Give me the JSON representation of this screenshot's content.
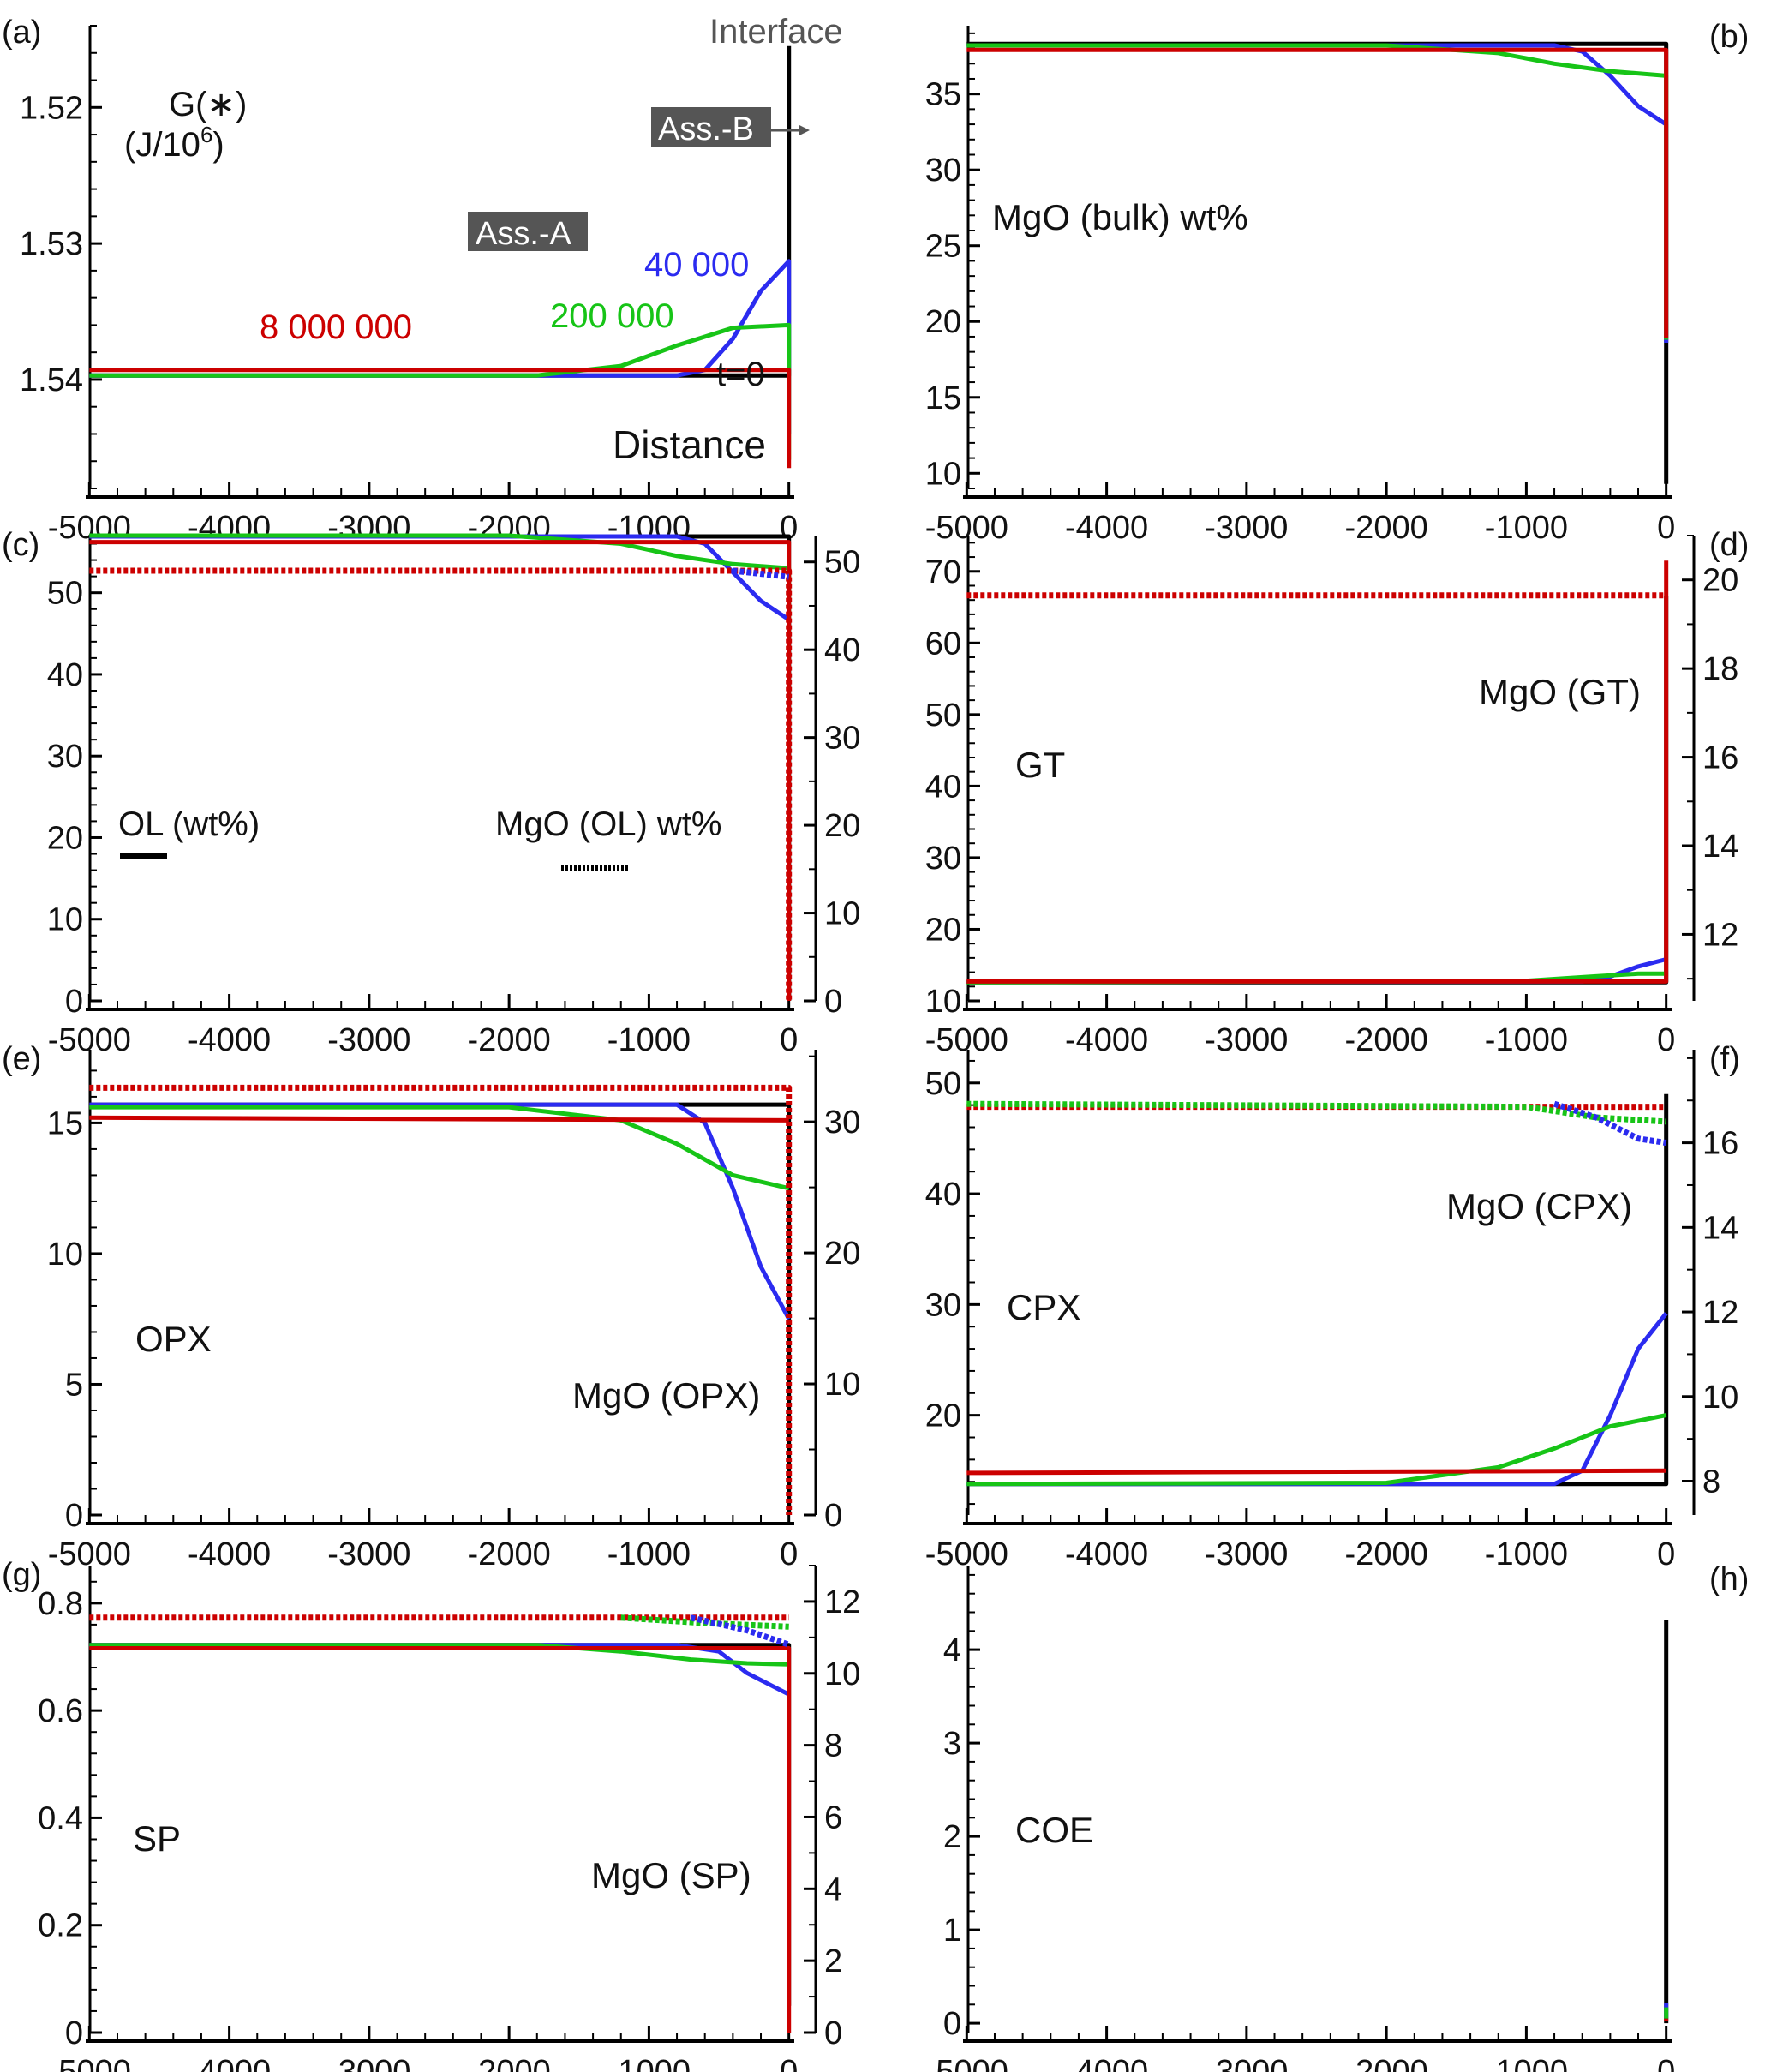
{
  "figure": {
    "series_legend": [
      {
        "name": "t=0",
        "color": "#000000"
      },
      {
        "name": "40 000",
        "color": "#2b2bf0"
      },
      {
        "name": "200 000",
        "color": "#17c417"
      },
      {
        "name": "8 000 000",
        "color": "#cc0000"
      }
    ],
    "x_ticks": [
      "-5000",
      "-4000",
      "-3000",
      "-2000",
      "-1000",
      "0"
    ]
  },
  "chart_data": [
    {
      "panel": "(a)",
      "type": "line",
      "title": "",
      "ylabel_line1": "G(∗)",
      "ylabel_line2": "(J/10",
      "ylabel_sup": "6",
      "ylabel_close": ")",
      "xlabel": "Distance",
      "xlim": [
        -5100,
        100
      ],
      "ylim": [
        1.548,
        1.514
      ],
      "y_inverted": true,
      "y_ticks": [
        "1.52",
        "1.53",
        "1.54"
      ],
      "y_tick_values": [
        1.52,
        1.53,
        1.54
      ],
      "annotations": {
        "interface": "Interface",
        "assemblage_a": "Ass.-A",
        "assemblage_b": "Ass.-B",
        "t0": "t=0",
        "t40000": "40 000",
        "t200000": "200 000",
        "t8000000": "8 000 000"
      },
      "series": [
        {
          "name": "t=0",
          "color": "#000000",
          "x": [
            -5000,
            0,
            0,
            0
          ],
          "y": [
            1.5397,
            1.5397,
            1.5155,
            1.5155
          ]
        },
        {
          "name": "40 000",
          "color": "#2b2bf0",
          "x": [
            -5000,
            -800,
            -600,
            -400,
            -200,
            0,
            0
          ],
          "y": [
            1.5397,
            1.5397,
            1.5393,
            1.537,
            1.5335,
            1.5313,
            1.544
          ]
        },
        {
          "name": "200 000",
          "color": "#17c417",
          "x": [
            -5000,
            -1800,
            -1200,
            -800,
            -400,
            0,
            0
          ],
          "y": [
            1.5397,
            1.5397,
            1.539,
            1.5375,
            1.5362,
            1.536,
            1.5459
          ]
        },
        {
          "name": "8 000 000",
          "color": "#cc0000",
          "x": [
            -5000,
            0,
            0
          ],
          "y": [
            1.5393,
            1.5393,
            1.5465
          ]
        }
      ]
    },
    {
      "panel": "(b)",
      "type": "line",
      "label": "MgO  (bulk) wt%",
      "xlim": [
        -5100,
        100
      ],
      "ylim": [
        9,
        39.5
      ],
      "y_ticks": [
        "10",
        "15",
        "20",
        "25",
        "30",
        "35"
      ],
      "y_tick_values": [
        10,
        15,
        20,
        25,
        30,
        35
      ],
      "series": [
        {
          "name": "t=0",
          "color": "#000000",
          "x": [
            -5000,
            0,
            0,
            0
          ],
          "y": [
            38.3,
            38.3,
            9.3,
            9.3
          ]
        },
        {
          "name": "40 000",
          "color": "#2b2bf0",
          "x": [
            -5000,
            -800,
            -600,
            -400,
            -200,
            0,
            0
          ],
          "y": [
            38.2,
            38.2,
            37.8,
            36.2,
            34.2,
            33.0,
            18.6
          ]
        },
        {
          "name": "200 000",
          "color": "#17c417",
          "x": [
            -5000,
            -2000,
            -1200,
            -800,
            -400,
            0,
            0
          ],
          "y": [
            38.2,
            38.2,
            37.7,
            37.0,
            36.5,
            36.2,
            18.8
          ]
        },
        {
          "name": "8 000 000",
          "color": "#cc0000",
          "x": [
            -5000,
            0,
            0
          ],
          "y": [
            37.9,
            37.9,
            18.9
          ]
        }
      ]
    },
    {
      "panel": "(c)",
      "type": "line",
      "label_left": "OL (wt%)",
      "label_right": "MgO  (OL) wt%",
      "xlim": [
        -5100,
        100
      ],
      "ylim": [
        0,
        57
      ],
      "y_ticks": [
        "0",
        "10",
        "20",
        "30",
        "40",
        "50"
      ],
      "y_tick_values": [
        0,
        10,
        20,
        30,
        40,
        50
      ],
      "y2lim": [
        0,
        53
      ],
      "y2_ticks": [
        "0",
        "10",
        "20",
        "30",
        "40",
        "50"
      ],
      "y2_tick_values": [
        0,
        10,
        20,
        30,
        40,
        50
      ],
      "series": [
        {
          "name": "t=0 OL",
          "color": "#000000",
          "axis": "left",
          "dashed": false,
          "x": [
            -5000,
            0,
            0
          ],
          "y": [
            56.9,
            56.9,
            0
          ]
        },
        {
          "name": "40 000 OL",
          "color": "#2b2bf0",
          "axis": "left",
          "dashed": false,
          "x": [
            -5000,
            -800,
            -600,
            -400,
            -200,
            0,
            0
          ],
          "y": [
            56.9,
            56.9,
            56.0,
            52.5,
            49.0,
            46.7,
            0
          ]
        },
        {
          "name": "200 000 OL",
          "color": "#17c417",
          "axis": "left",
          "dashed": false,
          "x": [
            -5000,
            -2000,
            -1200,
            -800,
            -400,
            0,
            0
          ],
          "y": [
            57.0,
            57.0,
            56.0,
            54.5,
            53.5,
            53.0,
            0
          ]
        },
        {
          "name": "8 000 000 OL",
          "color": "#cc0000",
          "axis": "left",
          "dashed": false,
          "x": [
            -5000,
            0,
            0
          ],
          "y": [
            56.2,
            56.2,
            0
          ]
        },
        {
          "name": "MgO OL",
          "color": "#cc0000",
          "axis": "right",
          "dashed": true,
          "x": [
            -5000,
            0,
            0
          ],
          "y": [
            49.0,
            49.0,
            0
          ]
        },
        {
          "name": "MgO OL 40 000",
          "color": "#2b2bf0",
          "axis": "right",
          "dashed": true,
          "x": [
            -400,
            0
          ],
          "y": [
            49.0,
            48.3
          ]
        }
      ]
    },
    {
      "panel": "(d)",
      "type": "line",
      "label_left": "GT",
      "label_right": "MgO (GT)",
      "xlim": [
        -5100,
        100
      ],
      "ylim": [
        10,
        75
      ],
      "y_ticks": [
        "10",
        "20",
        "30",
        "40",
        "50",
        "60",
        "70"
      ],
      "y_tick_values": [
        10,
        20,
        30,
        40,
        50,
        60,
        70
      ],
      "y2lim": [
        10.5,
        21
      ],
      "y2_ticks": [
        "12",
        "14",
        "16",
        "18",
        "20"
      ],
      "y2_tick_values": [
        12,
        14,
        16,
        18,
        20
      ],
      "series": [
        {
          "name": "t=0 GT",
          "color": "#000000",
          "axis": "left",
          "dashed": false,
          "x": [
            -5000,
            0,
            0
          ],
          "y": [
            12.6,
            12.6,
            66.5
          ]
        },
        {
          "name": "40 000 GT",
          "color": "#2b2bf0",
          "axis": "left",
          "dashed": false,
          "x": [
            -5000,
            -600,
            -400,
            -200,
            0
          ],
          "y": [
            12.7,
            12.7,
            13.4,
            14.8,
            15.8
          ]
        },
        {
          "name": "200 000 GT",
          "color": "#17c417",
          "axis": "left",
          "dashed": false,
          "x": [
            -5000,
            -1000,
            -600,
            -200,
            0
          ],
          "y": [
            12.6,
            12.8,
            13.3,
            13.8,
            13.8
          ]
        },
        {
          "name": "8 000 000 GT",
          "color": "#cc0000",
          "axis": "left",
          "dashed": false,
          "x": [
            -5000,
            0,
            0
          ],
          "y": [
            12.7,
            12.7,
            71.5
          ]
        },
        {
          "name": "MgO GT",
          "color": "#cc0000",
          "axis": "right",
          "dashed": true,
          "x": [
            -5000,
            0
          ],
          "y": [
            19.65,
            19.65
          ]
        }
      ]
    },
    {
      "panel": "(e)",
      "type": "line",
      "label_left": "OPX",
      "label_right": "MgO (OPX)",
      "xlim": [
        -5100,
        100
      ],
      "ylim": [
        0,
        17.8
      ],
      "y_ticks": [
        "0",
        "5",
        "10",
        "15"
      ],
      "y_tick_values": [
        0,
        5,
        10,
        15
      ],
      "y2lim": [
        0,
        35.5
      ],
      "y2_ticks": [
        "0",
        "10",
        "20",
        "30"
      ],
      "y2_tick_values": [
        0,
        10,
        20,
        30
      ],
      "series": [
        {
          "name": "t=0 OPX",
          "color": "#000000",
          "axis": "left",
          "dashed": false,
          "x": [
            -5000,
            0,
            0
          ],
          "y": [
            15.7,
            15.7,
            0
          ]
        },
        {
          "name": "40 000 OPX",
          "color": "#2b2bf0",
          "axis": "left",
          "dashed": false,
          "x": [
            -5000,
            -800,
            -600,
            -400,
            -200,
            0
          ],
          "y": [
            15.7,
            15.7,
            15.0,
            12.5,
            9.5,
            7.5
          ]
        },
        {
          "name": "200 000 OPX",
          "color": "#17c417",
          "axis": "left",
          "dashed": false,
          "x": [
            -5000,
            -2000,
            -1200,
            -800,
            -400,
            0
          ],
          "y": [
            15.6,
            15.6,
            15.1,
            14.2,
            13.0,
            12.5
          ]
        },
        {
          "name": "8 000 000 OPX",
          "color": "#cc0000",
          "axis": "left",
          "dashed": false,
          "x": [
            -5000,
            0
          ],
          "y": [
            15.2,
            15.1
          ]
        },
        {
          "name": "MgO OPX",
          "color": "#cc0000",
          "axis": "right",
          "dashed": true,
          "x": [
            -5000,
            0,
            0
          ],
          "y": [
            32.6,
            32.6,
            0
          ]
        }
      ]
    },
    {
      "panel": "(f)",
      "type": "line",
      "label_left": "CPX",
      "label_right": "MgO (CPX)",
      "xlim": [
        -5100,
        100
      ],
      "ylim": [
        11,
        53
      ],
      "y_ticks": [
        "20",
        "30",
        "40",
        "50"
      ],
      "y_tick_values": [
        20,
        30,
        40,
        50
      ],
      "y2lim": [
        7.2,
        18.2
      ],
      "y2_ticks": [
        "8",
        "10",
        "12",
        "14",
        "16"
      ],
      "y2_tick_values": [
        8,
        10,
        12,
        14,
        16
      ],
      "series": [
        {
          "name": "t=0 CPX",
          "color": "#000000",
          "axis": "left",
          "dashed": false,
          "x": [
            -5000,
            0,
            0
          ],
          "y": [
            13.8,
            13.8,
            49.0
          ]
        },
        {
          "name": "40 000 CPX",
          "color": "#2b2bf0",
          "axis": "left",
          "dashed": false,
          "x": [
            -5000,
            -800,
            -600,
            -400,
            -200,
            0
          ],
          "y": [
            13.8,
            13.8,
            15.0,
            20.0,
            26.0,
            29.2
          ]
        },
        {
          "name": "200 000 CPX",
          "color": "#17c417",
          "axis": "left",
          "dashed": false,
          "x": [
            -5000,
            -2000,
            -1200,
            -800,
            -400,
            0
          ],
          "y": [
            13.8,
            13.9,
            15.3,
            17.0,
            19.0,
            20.0
          ]
        },
        {
          "name": "8 000 000 CPX",
          "color": "#cc0000",
          "axis": "left",
          "dashed": false,
          "x": [
            -5000,
            0
          ],
          "y": [
            14.8,
            15.0
          ]
        },
        {
          "name": "MgO CPX red",
          "color": "#cc0000",
          "axis": "right",
          "dashed": true,
          "x": [
            -5000,
            0
          ],
          "y": [
            16.85,
            16.85
          ]
        },
        {
          "name": "MgO CPX green",
          "color": "#17c417",
          "axis": "right",
          "dashed": true,
          "x": [
            -5000,
            -1000,
            -500,
            0
          ],
          "y": [
            16.92,
            16.85,
            16.6,
            16.5
          ]
        },
        {
          "name": "MgO CPX blue",
          "color": "#2b2bf0",
          "axis": "right",
          "dashed": true,
          "x": [
            -800,
            -500,
            -200,
            0
          ],
          "y": [
            16.92,
            16.6,
            16.1,
            16.0
          ]
        }
      ]
    },
    {
      "panel": "(g)",
      "type": "line",
      "label_left": "SP",
      "label_right": "MgO  (SP)",
      "xlim": [
        -5100,
        100
      ],
      "ylim": [
        0,
        0.87
      ],
      "y_ticks": [
        "0",
        "0.2",
        "0.4",
        "0.6",
        "0.8"
      ],
      "y_tick_values": [
        0,
        0.2,
        0.4,
        0.6,
        0.8
      ],
      "y2lim": [
        0,
        13
      ],
      "y2_ticks": [
        "0",
        "2",
        "4",
        "6",
        "8",
        "10",
        "12"
      ],
      "y2_tick_values": [
        0,
        2,
        4,
        6,
        8,
        10,
        12
      ],
      "series": [
        {
          "name": "t=0 SP",
          "color": "#000000",
          "axis": "left",
          "dashed": false,
          "x": [
            -5000,
            0,
            0
          ],
          "y": [
            0.722,
            0.722,
            0.05
          ]
        },
        {
          "name": "40 000 SP",
          "color": "#2b2bf0",
          "axis": "left",
          "dashed": false,
          "x": [
            -5000,
            -800,
            -500,
            -300,
            0
          ],
          "y": [
            0.722,
            0.722,
            0.71,
            0.67,
            0.63
          ]
        },
        {
          "name": "200 000 SP",
          "color": "#17c417",
          "axis": "left",
          "dashed": false,
          "x": [
            -5000,
            -1800,
            -1200,
            -700,
            -300,
            0
          ],
          "y": [
            0.722,
            0.722,
            0.71,
            0.695,
            0.688,
            0.686
          ]
        },
        {
          "name": "8 000 000 SP",
          "color": "#cc0000",
          "axis": "left",
          "dashed": false,
          "x": [
            -5000,
            0,
            0
          ],
          "y": [
            0.716,
            0.716,
            0.0
          ]
        },
        {
          "name": "MgO SP",
          "color": "#cc0000",
          "axis": "right",
          "dashed": true,
          "x": [
            -5000,
            0
          ],
          "y": [
            11.55,
            11.55
          ]
        },
        {
          "name": "MgO SP green",
          "color": "#17c417",
          "axis": "right",
          "dashed": true,
          "x": [
            -1200,
            -600,
            0
          ],
          "y": [
            11.55,
            11.4,
            11.3
          ]
        },
        {
          "name": "MgO SP blue",
          "color": "#2b2bf0",
          "axis": "right",
          "dashed": true,
          "x": [
            -700,
            -300,
            0
          ],
          "y": [
            11.55,
            11.2,
            10.8
          ]
        }
      ]
    },
    {
      "panel": "(h)",
      "type": "line",
      "label_left": "COE",
      "xlim": [
        -5100,
        100
      ],
      "ylim": [
        -0.1,
        4.9
      ],
      "y_ticks": [
        "0",
        "1",
        "2",
        "3",
        "4"
      ],
      "y_tick_values": [
        0,
        1,
        2,
        3,
        4
      ],
      "series": [
        {
          "name": "t=0 COE",
          "color": "#000000",
          "axis": "left",
          "dashed": false,
          "x": [
            0,
            0,
            0
          ],
          "y": [
            0,
            4.32,
            4.32
          ]
        },
        {
          "name": "40 000 COE",
          "color": "#2b2bf0",
          "axis": "left",
          "dashed": false,
          "x": [
            0,
            0
          ],
          "y": [
            0.05,
            0.22
          ]
        },
        {
          "name": "200 000 COE",
          "color": "#17c417",
          "axis": "left",
          "dashed": false,
          "x": [
            0,
            0
          ],
          "y": [
            0.05,
            0.17
          ]
        },
        {
          "name": "8 000 000 COE",
          "color": "#cc0000",
          "axis": "left",
          "dashed": false,
          "x": [
            0,
            0
          ],
          "y": [
            0.02,
            0.05
          ]
        }
      ]
    }
  ]
}
